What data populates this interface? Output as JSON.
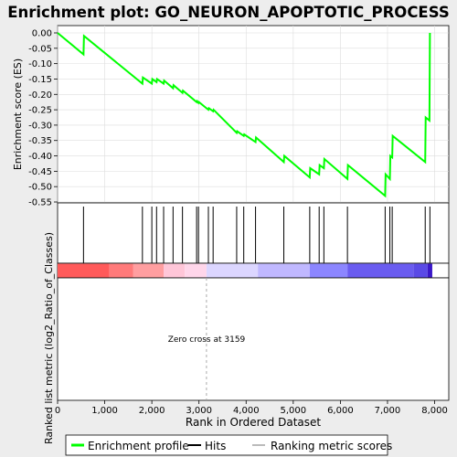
{
  "chart_data": {
    "type": "line",
    "title": "Enrichment plot: GO_NEURON_APOPTOTIC_PROCESS",
    "xlabel": "Rank in Ordered Dataset",
    "ylabel_top": "Enrichment score (ES)",
    "ylabel_bottom": "Ranked list metric (log2_Ratio_of_Classes)",
    "xlim": [
      0,
      8300
    ],
    "ylim": [
      -0.55,
      0.02
    ],
    "x_ticks": [
      0,
      1000,
      2000,
      3000,
      4000,
      5000,
      6000,
      7000,
      8000
    ],
    "x_tick_labels": [
      "0",
      "1,000",
      "2,000",
      "3,000",
      "4,000",
      "5,000",
      "6,000",
      "7,000",
      "8,000"
    ],
    "y_ticks": [
      0.0,
      -0.05,
      -0.1,
      -0.15,
      -0.2,
      -0.25,
      -0.3,
      -0.35,
      -0.4,
      -0.45,
      -0.5,
      -0.55
    ],
    "y_tick_labels": [
      "0.00",
      "-0.05",
      "-0.10",
      "-0.15",
      "-0.20",
      "-0.25",
      "-0.30",
      "-0.35",
      "-0.40",
      "-0.45",
      "-0.50",
      "-0.55"
    ],
    "grid": true,
    "annotation": "Zero cross at 3159",
    "zero_cross": 3159,
    "enrichment_profile": {
      "x": [
        0,
        550,
        560,
        1800,
        1810,
        2000,
        2010,
        2100,
        2110,
        2250,
        2260,
        2450,
        2460,
        2650,
        2660,
        2950,
        2960,
        2990,
        3000,
        3200,
        3210,
        3300,
        3310,
        3800,
        3810,
        3950,
        3960,
        4200,
        4210,
        4800,
        4810,
        5350,
        5360,
        5550,
        5560,
        5650,
        5660,
        6150,
        6160,
        6950,
        6960,
        7050,
        7060,
        7100,
        7110,
        7800,
        7810,
        7890,
        7900
      ],
      "y": [
        0.0,
        -0.07,
        -0.01,
        -0.165,
        -0.145,
        -0.165,
        -0.15,
        -0.16,
        -0.15,
        -0.165,
        -0.155,
        -0.18,
        -0.17,
        -0.195,
        -0.188,
        -0.225,
        -0.222,
        -0.228,
        -0.225,
        -0.25,
        -0.245,
        -0.255,
        -0.25,
        -0.325,
        -0.32,
        -0.335,
        -0.33,
        -0.355,
        -0.34,
        -0.42,
        -0.4,
        -0.47,
        -0.44,
        -0.46,
        -0.43,
        -0.44,
        -0.41,
        -0.475,
        -0.43,
        -0.53,
        -0.46,
        -0.475,
        -0.4,
        -0.405,
        -0.335,
        -0.42,
        -0.275,
        -0.285,
        0.0
      ]
    },
    "hits": [
      550,
      1800,
      2000,
      2100,
      2250,
      2450,
      2650,
      2950,
      2990,
      3200,
      3300,
      3800,
      3950,
      4200,
      4800,
      5350,
      5550,
      5650,
      6150,
      6950,
      7050,
      7100,
      7800,
      7900
    ],
    "ranking_metric_colors": [
      "#ff5a5a",
      "#ff7a7a",
      "#ff9ea0",
      "#ffc6d8",
      "#ffd6ea",
      "#dcd6ff",
      "#c0b8ff",
      "#8c86ff",
      "#6a5cf0",
      "#5a4ae6",
      "#3a18c8"
    ],
    "legend": {
      "placement": "bottom",
      "entries": [
        {
          "label": "Enrichment profile",
          "color": "#00ff00"
        },
        {
          "label": "Hits",
          "color": "#000000"
        },
        {
          "label": "Ranking metric scores",
          "color": "#bbbbbb"
        }
      ]
    }
  }
}
